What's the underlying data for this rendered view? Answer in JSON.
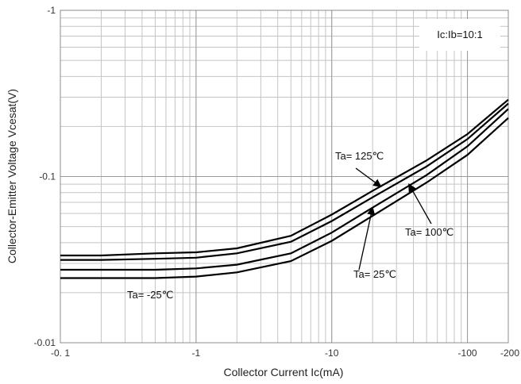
{
  "chart_data": {
    "type": "line",
    "title": "",
    "xlabel": "Collector Current   Ic(mA)",
    "ylabel": "Collector-Emitter Voltage   Vcesat(V)",
    "xscale": "log",
    "yscale": "log",
    "xlim": [
      0.1,
      200
    ],
    "ylim": [
      0.01,
      1
    ],
    "x_ticks": [
      {
        "value": 0.1,
        "label": "-0. 1"
      },
      {
        "value": 1,
        "label": "-1"
      },
      {
        "value": 10,
        "label": "-10"
      },
      {
        "value": 100,
        "label": "-100"
      },
      {
        "value": 200,
        "label": "-200"
      }
    ],
    "y_ticks": [
      {
        "value": 1,
        "label": "-1"
      },
      {
        "value": 0.1,
        "label": "-0.1"
      },
      {
        "value": 0.01,
        "label": "-0.01"
      }
    ],
    "grid": true,
    "condition_label": "Ic:Ib=10:1",
    "line_color": "#000000",
    "series": [
      {
        "name": "Ta= 125℃",
        "x": [
          0.1,
          0.2,
          0.5,
          1,
          2,
          5,
          10,
          20,
          50,
          100,
          200
        ],
        "y": [
          0.0335,
          0.0335,
          0.0345,
          0.035,
          0.037,
          0.044,
          0.059,
          0.082,
          0.125,
          0.18,
          0.29
        ]
      },
      {
        "name": "Ta= 100℃",
        "x": [
          0.1,
          0.2,
          0.5,
          1,
          2,
          5,
          10,
          20,
          50,
          100,
          200
        ],
        "y": [
          0.0315,
          0.0315,
          0.032,
          0.0325,
          0.0345,
          0.0405,
          0.054,
          0.075,
          0.115,
          0.168,
          0.275
        ]
      },
      {
        "name": "Ta= 25℃",
        "x": [
          0.1,
          0.2,
          0.5,
          1,
          2,
          5,
          10,
          20,
          50,
          100,
          200
        ],
        "y": [
          0.0275,
          0.0275,
          0.0275,
          0.028,
          0.0295,
          0.0345,
          0.046,
          0.065,
          0.102,
          0.152,
          0.255
        ]
      },
      {
        "name": "Ta= -25℃",
        "x": [
          0.1,
          0.2,
          0.5,
          1,
          2,
          5,
          10,
          20,
          50,
          100,
          200
        ],
        "y": [
          0.0245,
          0.0245,
          0.0245,
          0.025,
          0.0265,
          0.031,
          0.041,
          0.058,
          0.092,
          0.135,
          0.225
        ]
      }
    ],
    "annotations": [
      {
        "text": "Ta= 125℃",
        "arrow_to": {
          "x": 23,
          "y": 0.087
        }
      },
      {
        "text": "Ta= 100℃",
        "arrow_to": {
          "x": 37,
          "y": 0.09
        }
      },
      {
        "text": "Ta= 25℃",
        "arrow_to": {
          "x": 20,
          "y": 0.065
        }
      },
      {
        "text": "Ta= -25℃"
      }
    ]
  }
}
